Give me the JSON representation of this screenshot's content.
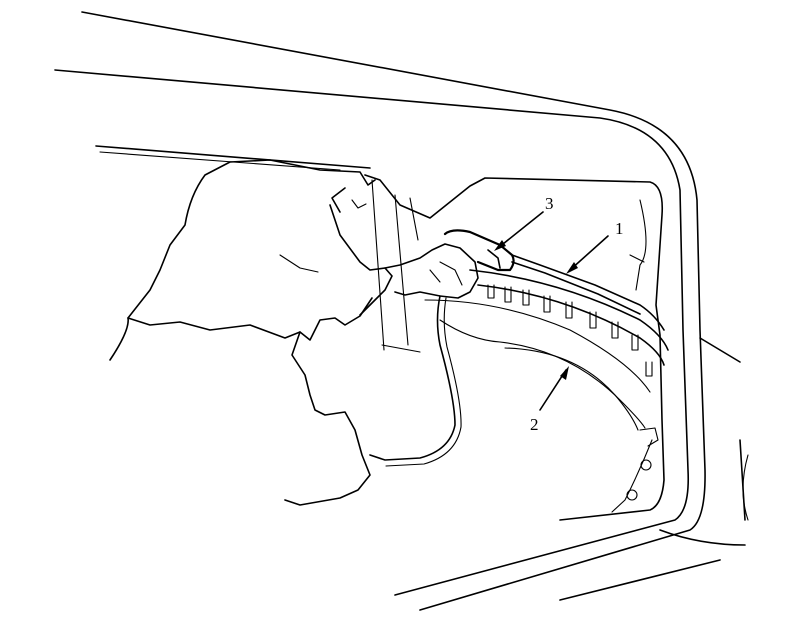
{
  "callouts": [
    {
      "id": "1",
      "label": "1"
    },
    {
      "id": "2",
      "label": "2"
    },
    {
      "id": "3",
      "label": "3"
    }
  ],
  "colors": {
    "line": "#000000",
    "background": "#ffffff"
  }
}
